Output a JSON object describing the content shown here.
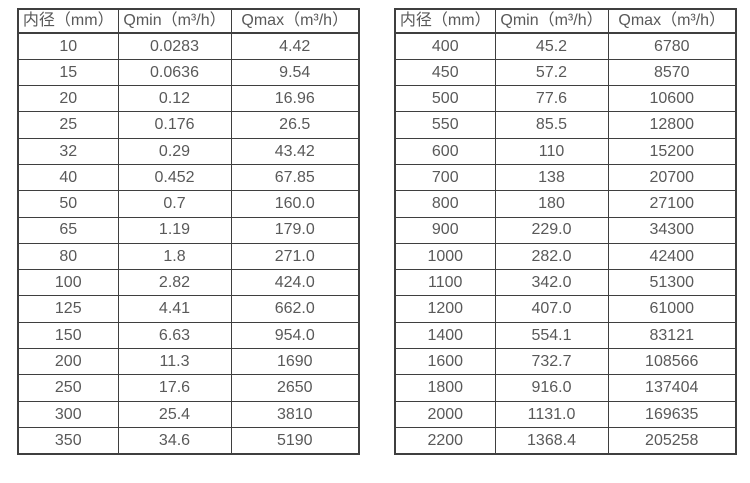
{
  "page": {
    "background_color": "#ffffff",
    "text_color": "#595959",
    "border_color": "#3f3f3f"
  },
  "left_table": {
    "headers": [
      "内径（mm）",
      "Qmin（m³/h）",
      "Qmax（m³/h）"
    ],
    "rows": [
      [
        "10",
        "0.0283",
        "4.42"
      ],
      [
        "15",
        "0.0636",
        "9.54"
      ],
      [
        "20",
        "0.12",
        "16.96"
      ],
      [
        "25",
        "0.176",
        "26.5"
      ],
      [
        "32",
        "0.29",
        "43.42"
      ],
      [
        "40",
        "0.452",
        "67.85"
      ],
      [
        "50",
        "0.7",
        "160.0"
      ],
      [
        "65",
        "1.19",
        "179.0"
      ],
      [
        "80",
        "1.8",
        "271.0"
      ],
      [
        "100",
        "2.82",
        "424.0"
      ],
      [
        "125",
        "4.41",
        "662.0"
      ],
      [
        "150",
        "6.63",
        "954.0"
      ],
      [
        "200",
        "11.3",
        "1690"
      ],
      [
        "250",
        "17.6",
        "2650"
      ],
      [
        "300",
        "25.4",
        "3810"
      ],
      [
        "350",
        "34.6",
        "5190"
      ]
    ]
  },
  "right_table": {
    "headers": [
      "内径（mm）",
      "Qmin（m³/h）",
      "Qmax（m³/h）"
    ],
    "rows": [
      [
        "400",
        "45.2",
        "6780"
      ],
      [
        "450",
        "57.2",
        "8570"
      ],
      [
        "500",
        "77.6",
        "10600"
      ],
      [
        "550",
        "85.5",
        "12800"
      ],
      [
        "600",
        "110",
        "15200"
      ],
      [
        "700",
        "138",
        "20700"
      ],
      [
        "800",
        "180",
        "27100"
      ],
      [
        "900",
        "229.0",
        "34300"
      ],
      [
        "1000",
        "282.0",
        "42400"
      ],
      [
        "1100",
        "342.0",
        "51300"
      ],
      [
        "1200",
        "407.0",
        "61000"
      ],
      [
        "1400",
        "554.1",
        "83121"
      ],
      [
        "1600",
        "732.7",
        "108566"
      ],
      [
        "1800",
        "916.0",
        "137404"
      ],
      [
        "2000",
        "1131.0",
        "169635"
      ],
      [
        "2200",
        "1368.4",
        "205258"
      ]
    ]
  }
}
